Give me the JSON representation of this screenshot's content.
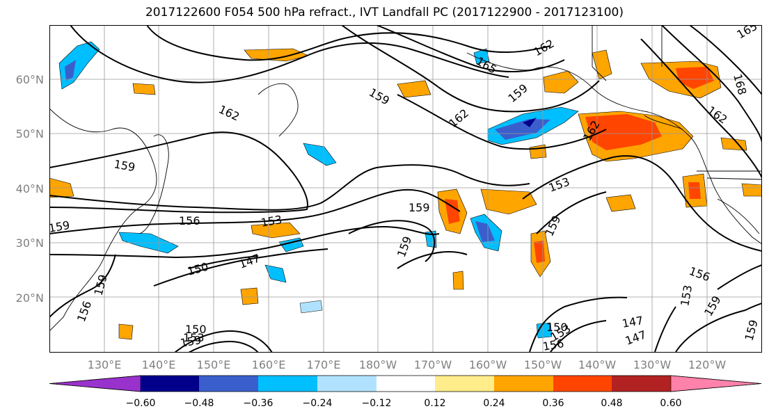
{
  "title": "2017122600 F054 500 hPa refract., IVT Landfall PC (2017122900 - 2017123100)",
  "lat_labels": [
    "60°N",
    "50°N",
    "40°N",
    "30°N",
    "20°N"
  ],
  "lon_labels": [
    "130°E",
    "140°E",
    "150°E",
    "160°E",
    "170°E",
    "180°W",
    "170°W",
    "160°W",
    "150°W",
    "140°W",
    "130°W",
    "120°W"
  ],
  "colorbar": {
    "ticks": [
      "−0.60",
      "−0.48",
      "−0.36",
      "−0.24",
      "−0.12",
      "0.12",
      "0.24",
      "0.36",
      "0.48",
      "0.60"
    ],
    "colors": [
      "#9932cc",
      "#00008b",
      "#3a5fcd",
      "#00bfff",
      "#b0e2ff",
      "#ffffff",
      "#ffec8b",
      "#ffa500",
      "#ff4500",
      "#b22222",
      "#ff82ab"
    ]
  },
  "contour_labels": [
    {
      "text": "165"
    },
    {
      "text": "162"
    },
    {
      "text": "162"
    },
    {
      "text": "159"
    },
    {
      "text": "162"
    },
    {
      "text": "159"
    },
    {
      "text": "162"
    },
    {
      "text": "168"
    },
    {
      "text": "162"
    },
    {
      "text": "165"
    },
    {
      "text": "159"
    },
    {
      "text": "156"
    },
    {
      "text": "153"
    },
    {
      "text": "153"
    },
    {
      "text": "159"
    },
    {
      "text": "150"
    },
    {
      "text": "147"
    },
    {
      "text": "159"
    },
    {
      "text": "159"
    },
    {
      "text": "156"
    },
    {
      "text": "153"
    },
    {
      "text": "159"
    },
    {
      "text": "147"
    },
    {
      "text": "147"
    },
    {
      "text": "150"
    },
    {
      "text": "153"
    },
    {
      "text": "156"
    },
    {
      "text": "159"
    },
    {
      "text": "159"
    },
    {
      "text": "156"
    },
    {
      "text": "159"
    },
    {
      "text": "150"
    },
    {
      "text": "153"
    },
    {
      "text": "159"
    }
  ]
}
